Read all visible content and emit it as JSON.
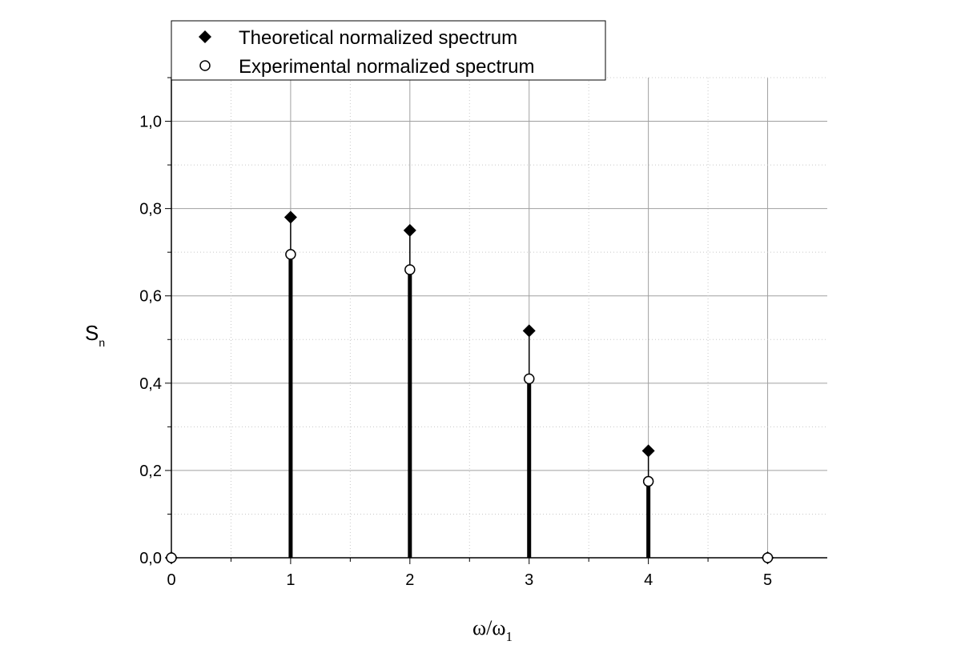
{
  "chart_data": {
    "type": "scatter",
    "xlabel": "ω/ω",
    "xlabel_sub": "1",
    "ylabel": "S",
    "ylabel_sub": "n",
    "xlim": [
      0,
      5.5
    ],
    "ylim": [
      0,
      1.1
    ],
    "x_ticks": [
      0,
      1,
      2,
      3,
      4,
      5
    ],
    "x_tick_labels": [
      "0",
      "1",
      "2",
      "3",
      "4",
      "5"
    ],
    "y_ticks": [
      0,
      0.2,
      0.4,
      0.6,
      0.8,
      1.0
    ],
    "y_tick_labels": [
      "0,0",
      "0,2",
      "0,4",
      "0,6",
      "0,8",
      "1,0"
    ],
    "grid": true,
    "legend_position": "top-left",
    "series": [
      {
        "name": "Theoretical normalized spectrum",
        "marker": "filled-diamond",
        "color": "#000000",
        "x": [
          0,
          1,
          2,
          3,
          4,
          5
        ],
        "values": [
          0,
          0.78,
          0.75,
          0.52,
          0.245,
          0
        ]
      },
      {
        "name": "Experimental normalized spectrum",
        "marker": "open-circle",
        "color": "#000000",
        "x": [
          0,
          1,
          2,
          3,
          4,
          5
        ],
        "values": [
          0,
          0.695,
          0.66,
          0.41,
          0.175,
          0
        ]
      }
    ]
  }
}
